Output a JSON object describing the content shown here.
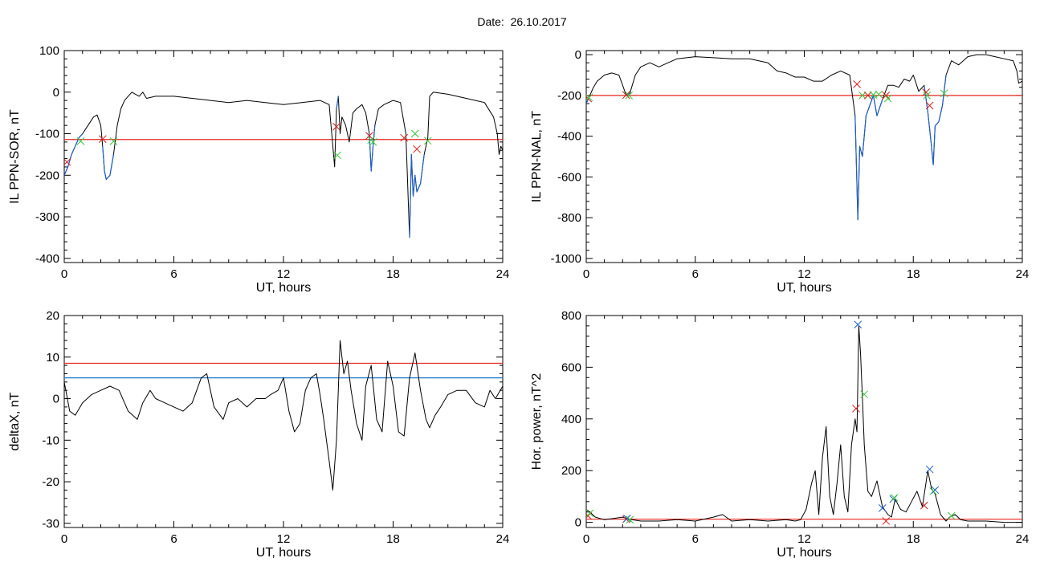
{
  "title": "Date:  26.10.2017",
  "colors": {
    "trace": "#000000",
    "threshold_red": "#e8251f",
    "threshold_blue": "#1f78c8",
    "segment_blue": "#1f5fc8",
    "marker_red": "#d42020",
    "marker_green": "#3cc83c",
    "marker_blue": "#2060c8"
  },
  "chart_data": [
    {
      "type": "line",
      "id": "sor",
      "xlabel": "UT, hours",
      "ylabel": "IL PPN-SOR, nT",
      "xlim": [
        0,
        24
      ],
      "ylim": [
        -410,
        100
      ],
      "xticks": [
        0,
        6,
        12,
        18,
        24
      ],
      "yticks": [
        100,
        0,
        -100,
        -200,
        -300,
        -400
      ],
      "series": [
        {
          "x": [
            0,
            0.2,
            0.4,
            0.6,
            0.8,
            1.0,
            1.3,
            1.6,
            1.8,
            2.0,
            2.1,
            2.2,
            2.3,
            2.5,
            2.7,
            2.9,
            3.1,
            3.3,
            3.5,
            3.7,
            3.9,
            4.1,
            4.3,
            4.5,
            5,
            6,
            7,
            8,
            9,
            10,
            11,
            12,
            13,
            14,
            14.5,
            14.8,
            14.9,
            15.0,
            15.1,
            15.2,
            15.4,
            15.6,
            15.8,
            16.0,
            16.3,
            16.5,
            16.7,
            16.8,
            16.9,
            17.0,
            17.2,
            17.5,
            18.0,
            18.4,
            18.7,
            18.9,
            19.0,
            19.1,
            19.2,
            19.3,
            19.5,
            19.7,
            19.9,
            20.0,
            20.2,
            21,
            22,
            23,
            23.5,
            23.7,
            23.8,
            23.9,
            24.0
          ],
          "y": [
            -200,
            -180,
            -150,
            -130,
            -110,
            -100,
            -80,
            -60,
            -55,
            -80,
            -130,
            -190,
            -210,
            -200,
            -150,
            -80,
            -40,
            -20,
            -10,
            0,
            -5,
            -10,
            0,
            -15,
            -10,
            -10,
            -15,
            -20,
            -25,
            -20,
            -25,
            -30,
            -25,
            -20,
            -30,
            -180,
            -40,
            -10,
            -100,
            -60,
            -80,
            -120,
            -50,
            -40,
            -30,
            -50,
            -100,
            -190,
            -130,
            -80,
            -40,
            -30,
            -20,
            -25,
            -100,
            -350,
            -150,
            -250,
            -200,
            -240,
            -220,
            -150,
            -110,
            -10,
            0,
            -5,
            -15,
            -25,
            -60,
            -100,
            -150,
            -130,
            -140
          ],
          "color": "#000000"
        }
      ],
      "thresholds": [
        {
          "y": -114,
          "color": "#e8251f"
        }
      ],
      "blue_segments": [
        [
          0.0,
          1.0
        ],
        [
          2.1,
          2.8
        ],
        [
          14.9,
          15.0
        ],
        [
          16.6,
          17.0
        ],
        [
          18.8,
          19.7
        ]
      ],
      "markers": [
        {
          "x": 0.15,
          "y": -168,
          "color": "#d42020"
        },
        {
          "x": 0.9,
          "y": -118,
          "color": "#3cc83c"
        },
        {
          "x": 2.1,
          "y": -113,
          "color": "#d42020"
        },
        {
          "x": 2.7,
          "y": -118,
          "color": "#3cc83c"
        },
        {
          "x": 14.9,
          "y": -83,
          "color": "#d42020"
        },
        {
          "x": 14.95,
          "y": -152,
          "color": "#3cc83c"
        },
        {
          "x": 16.7,
          "y": -105,
          "color": "#d42020"
        },
        {
          "x": 16.8,
          "y": -115,
          "color": "#3cc83c"
        },
        {
          "x": 16.9,
          "y": -120,
          "color": "#3cc83c"
        },
        {
          "x": 18.6,
          "y": -110,
          "color": "#d42020"
        },
        {
          "x": 19.2,
          "y": -100,
          "color": "#3cc83c"
        },
        {
          "x": 19.3,
          "y": -137,
          "color": "#d42020"
        },
        {
          "x": 19.9,
          "y": -117,
          "color": "#3cc83c"
        }
      ]
    },
    {
      "type": "line",
      "id": "nal",
      "xlabel": "UT, hours",
      "ylabel": "IL PPN-NAL, nT",
      "xlim": [
        0,
        24
      ],
      "ylim": [
        -1020,
        20
      ],
      "xticks": [
        0,
        6,
        12,
        18,
        24
      ],
      "yticks": [
        0,
        -200,
        -400,
        -600,
        -800,
        -1000
      ],
      "series": [
        {
          "x": [
            0,
            0.2,
            0.4,
            0.6,
            1.0,
            1.4,
            1.8,
            2.0,
            2.2,
            2.4,
            2.7,
            3,
            3.5,
            4,
            4.5,
            5,
            6,
            7,
            8,
            9,
            10,
            10.5,
            11,
            11.5,
            12,
            12.5,
            13,
            13.5,
            14,
            14.5,
            14.8,
            14.95,
            15.05,
            15.2,
            15.4,
            15.6,
            15.8,
            16.0,
            16.3,
            16.6,
            16.9,
            17.2,
            17.5,
            17.8,
            18.0,
            18.3,
            18.6,
            18.8,
            19.0,
            19.1,
            19.2,
            19.4,
            19.6,
            19.8,
            20.1,
            20.5,
            21,
            21.5,
            22,
            22.5,
            23,
            23.5,
            23.7,
            23.8,
            24.0
          ],
          "y": [
            -240,
            -200,
            -160,
            -130,
            -100,
            -90,
            -100,
            -150,
            -200,
            -190,
            -100,
            -60,
            -40,
            -60,
            -40,
            -20,
            -10,
            -15,
            -20,
            -20,
            -40,
            -80,
            -90,
            -110,
            -110,
            -130,
            -130,
            -100,
            -80,
            -100,
            -300,
            -810,
            -450,
            -500,
            -300,
            -250,
            -200,
            -300,
            -220,
            -150,
            -150,
            -160,
            -120,
            -130,
            -100,
            -180,
            -150,
            -280,
            -450,
            -540,
            -350,
            -330,
            -250,
            -100,
            -30,
            -50,
            -10,
            0,
            0,
            -10,
            -20,
            -30,
            -80,
            -140,
            -130
          ],
          "color": "#000000"
        }
      ],
      "thresholds": [
        {
          "y": -200,
          "color": "#e8251f"
        }
      ],
      "blue_segments": [
        [
          0.0,
          0.2
        ],
        [
          2.1,
          2.4
        ],
        [
          14.8,
          16.5
        ],
        [
          18.6,
          19.8
        ]
      ],
      "markers": [
        {
          "x": 0.1,
          "y": -215,
          "color": "#d42020"
        },
        {
          "x": 0.15,
          "y": -210,
          "color": "#3cc83c"
        },
        {
          "x": 2.2,
          "y": -198,
          "color": "#d42020"
        },
        {
          "x": 2.35,
          "y": -200,
          "color": "#3cc83c"
        },
        {
          "x": 14.9,
          "y": -145,
          "color": "#d42020"
        },
        {
          "x": 15.2,
          "y": -200,
          "color": "#3cc83c"
        },
        {
          "x": 15.5,
          "y": -200,
          "color": "#d42020"
        },
        {
          "x": 15.8,
          "y": -197,
          "color": "#3cc83c"
        },
        {
          "x": 16.1,
          "y": -195,
          "color": "#3cc83c"
        },
        {
          "x": 16.5,
          "y": -200,
          "color": "#d42020"
        },
        {
          "x": 16.6,
          "y": -215,
          "color": "#3cc83c"
        },
        {
          "x": 18.7,
          "y": -185,
          "color": "#d42020"
        },
        {
          "x": 18.75,
          "y": -200,
          "color": "#3cc83c"
        },
        {
          "x": 18.9,
          "y": -250,
          "color": "#d42020"
        },
        {
          "x": 19.7,
          "y": -190,
          "color": "#3cc83c"
        }
      ]
    },
    {
      "type": "line",
      "id": "deltax",
      "xlabel": "UT, hours",
      "ylabel": "deltaX, nT",
      "xlim": [
        0,
        24
      ],
      "ylim": [
        -31,
        20
      ],
      "xticks": [
        0,
        6,
        12,
        18,
        24
      ],
      "yticks": [
        20,
        10,
        0,
        -10,
        -20,
        -30
      ],
      "series": [
        {
          "x": [
            0,
            0.3,
            0.6,
            1.0,
            1.5,
            2.0,
            2.5,
            3.0,
            3.5,
            4.0,
            4.3,
            4.7,
            5.0,
            5.5,
            6.0,
            6.5,
            7.0,
            7.5,
            7.8,
            8.2,
            8.7,
            9.0,
            9.5,
            10,
            10.5,
            11,
            11.3,
            11.7,
            12,
            12.3,
            12.6,
            12.9,
            13.2,
            13.5,
            13.8,
            14.0,
            14.2,
            14.5,
            14.7,
            14.9,
            15.1,
            15.3,
            15.5,
            15.7,
            16.0,
            16.3,
            16.5,
            16.8,
            17.1,
            17.4,
            17.7,
            18.0,
            18.3,
            18.6,
            18.9,
            19.2,
            19.5,
            19.8,
            20.0,
            20.3,
            20.6,
            21,
            21.5,
            22,
            22.5,
            23,
            23.3,
            23.6,
            24.0
          ],
          "y": [
            4,
            -3,
            -4,
            -1,
            1,
            2,
            3,
            2,
            -3,
            -5,
            -1,
            2,
            0,
            -1,
            -2,
            -3,
            -1,
            5,
            6,
            -2,
            -5,
            -1,
            0,
            -2,
            0,
            0,
            1,
            2,
            5,
            -3,
            -8,
            -6,
            2,
            5,
            6,
            1,
            -5,
            -15,
            -22,
            -10,
            14,
            6,
            9,
            2,
            -6,
            -10,
            3,
            8,
            -5,
            -8,
            9,
            3,
            -8,
            -9,
            5,
            11,
            2,
            -5,
            -7,
            -4,
            -2,
            1,
            2,
            2,
            -1,
            -2,
            2,
            0,
            3
          ],
          "color": "#000000"
        }
      ],
      "thresholds": [
        {
          "y": 8.5,
          "color": "#e8251f"
        },
        {
          "y": 5,
          "color": "#1f78c8"
        }
      ],
      "blue_segments": [],
      "markers": []
    },
    {
      "type": "line",
      "id": "power",
      "xlabel": "UT, hours",
      "ylabel": "Hor. power, nT^2",
      "xlim": [
        0,
        24
      ],
      "ylim": [
        -20,
        800
      ],
      "xticks": [
        0,
        6,
        12,
        18,
        24
      ],
      "yticks": [
        800,
        600,
        400,
        200,
        0
      ],
      "series": [
        {
          "x": [
            0,
            0.2,
            0.5,
            1,
            1.5,
            2,
            2.5,
            3,
            4,
            5,
            6,
            7,
            7.5,
            8,
            9,
            10,
            11,
            11.5,
            11.8,
            12.1,
            12.4,
            12.6,
            12.8,
            13.0,
            13.2,
            13.4,
            13.6,
            13.8,
            14.0,
            14.2,
            14.4,
            14.6,
            14.8,
            14.9,
            15.0,
            15.1,
            15.2,
            15.3,
            15.5,
            15.7,
            16.0,
            16.3,
            16.6,
            16.8,
            17.0,
            17.3,
            17.6,
            17.9,
            18.2,
            18.5,
            18.8,
            19.0,
            19.2,
            19.5,
            19.8,
            20.0,
            20.3,
            20.6,
            21,
            22,
            23,
            24
          ],
          "y": [
            50,
            40,
            20,
            10,
            15,
            20,
            10,
            5,
            5,
            10,
            5,
            20,
            30,
            5,
            10,
            5,
            10,
            5,
            10,
            50,
            150,
            200,
            30,
            250,
            370,
            100,
            30,
            150,
            300,
            100,
            40,
            300,
            400,
            350,
            760,
            650,
            480,
            300,
            120,
            100,
            160,
            60,
            30,
            20,
            90,
            50,
            40,
            80,
            120,
            60,
            200,
            130,
            110,
            30,
            5,
            20,
            30,
            10,
            5,
            5,
            0,
            0
          ],
          "color": "#000000"
        }
      ],
      "thresholds": [
        {
          "y": 12,
          "color": "#e8251f"
        }
      ],
      "blue_segments": [],
      "markers": [
        {
          "x": 0.1,
          "y": 25,
          "color": "#d42020"
        },
        {
          "x": 0.2,
          "y": 35,
          "color": "#3cc83c"
        },
        {
          "x": 2.2,
          "y": 12,
          "color": "#d42020"
        },
        {
          "x": 2.25,
          "y": 15,
          "color": "#2060c8"
        },
        {
          "x": 2.4,
          "y": 10,
          "color": "#3cc83c"
        },
        {
          "x": 14.85,
          "y": 440,
          "color": "#d42020"
        },
        {
          "x": 14.95,
          "y": 765,
          "color": "#2060c8"
        },
        {
          "x": 15.3,
          "y": 495,
          "color": "#3cc83c"
        },
        {
          "x": 16.3,
          "y": 55,
          "color": "#2060c8"
        },
        {
          "x": 16.5,
          "y": 5,
          "color": "#d42020"
        },
        {
          "x": 16.9,
          "y": 90,
          "color": "#2060c8"
        },
        {
          "x": 16.95,
          "y": 95,
          "color": "#3cc83c"
        },
        {
          "x": 18.6,
          "y": 65,
          "color": "#d42020"
        },
        {
          "x": 18.9,
          "y": 205,
          "color": "#2060c8"
        },
        {
          "x": 19.1,
          "y": 120,
          "color": "#3cc83c"
        },
        {
          "x": 19.2,
          "y": 125,
          "color": "#2060c8"
        },
        {
          "x": 20.1,
          "y": 25,
          "color": "#3cc83c"
        }
      ]
    }
  ]
}
